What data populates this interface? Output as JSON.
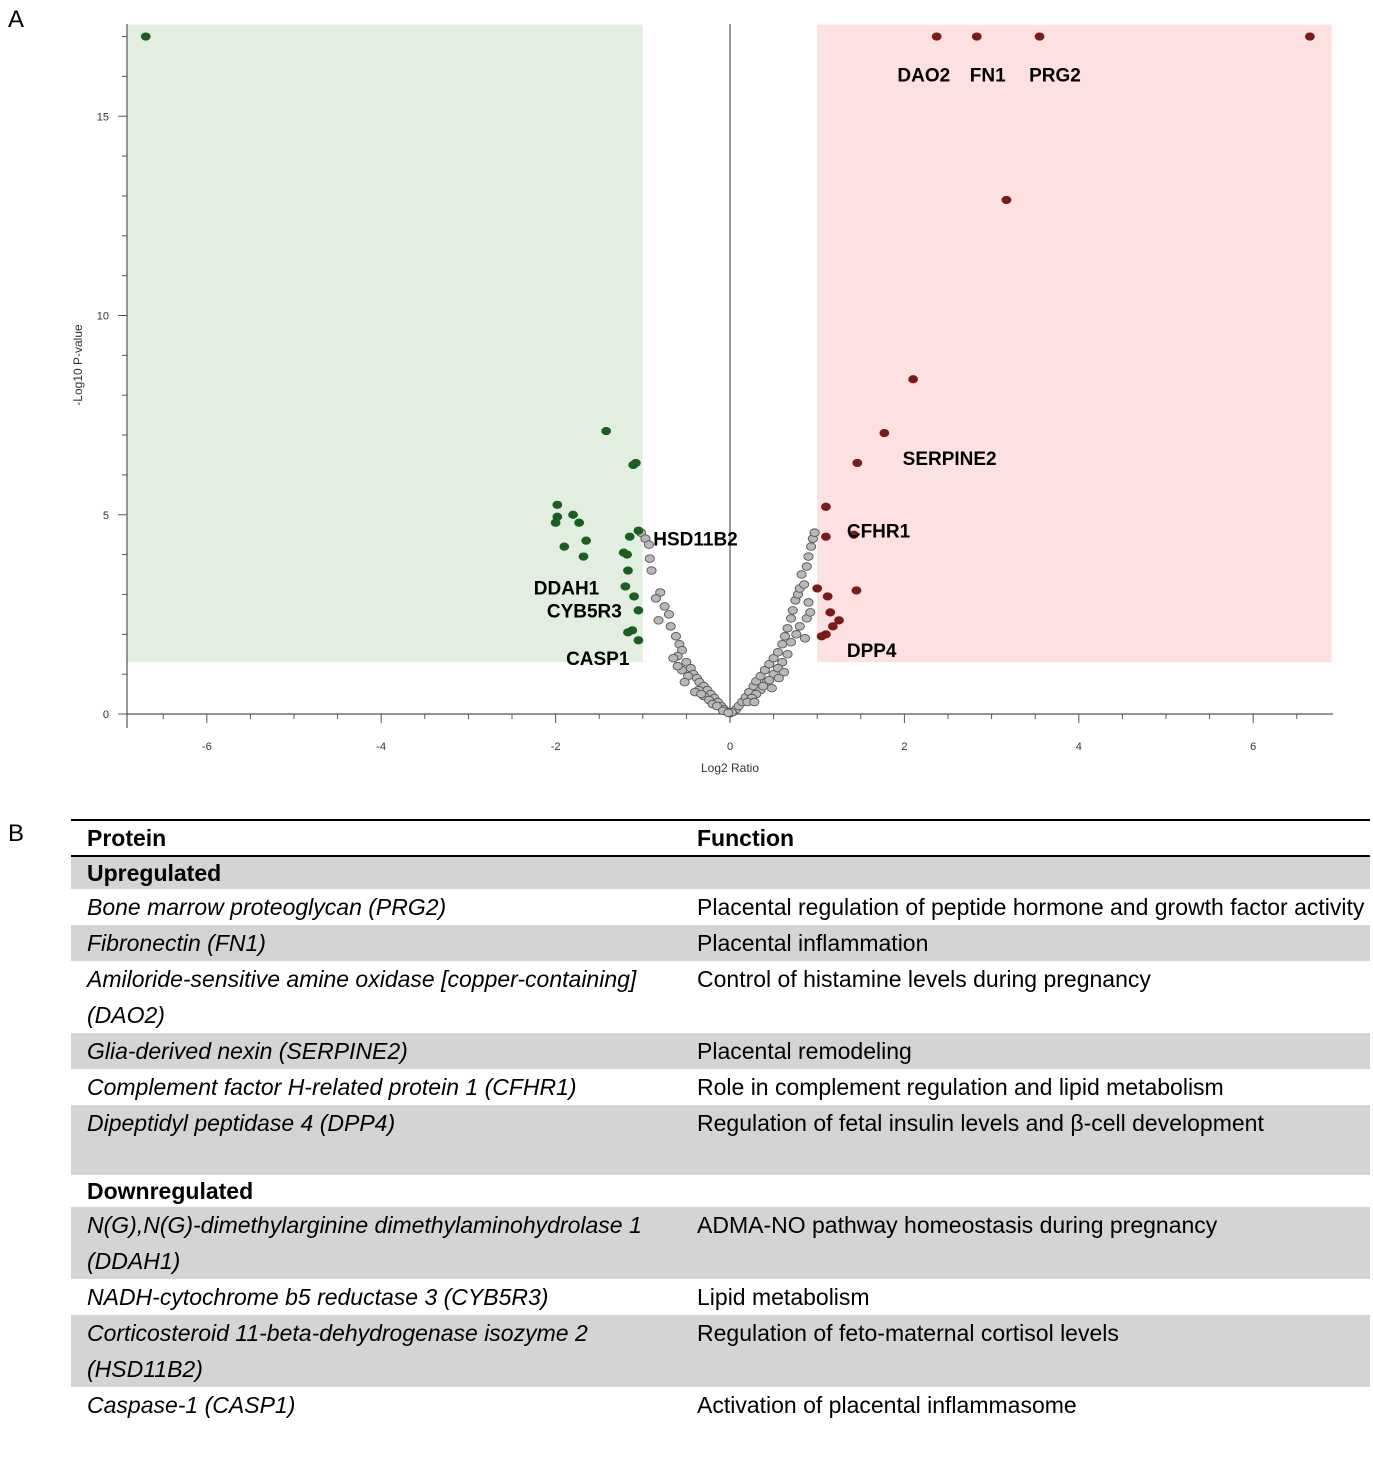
{
  "panels": {
    "a": "A",
    "b": "B"
  },
  "chart_data": {
    "type": "scatter",
    "xlabel": "Log2 Ratio",
    "ylabel": "-Log10 P-value",
    "xlim": [
      -7.0,
      6.9
    ],
    "ylim": [
      0,
      17.3
    ],
    "xticks": [
      -6,
      -4,
      -2,
      0,
      2,
      4,
      6
    ],
    "yticks": [
      0,
      5,
      10,
      15
    ],
    "grid": false,
    "regions": [
      {
        "name": "downregulated",
        "color": "#e2efe0",
        "x": [
          -7.0,
          -1.0
        ],
        "y": [
          1.3,
          17.3
        ]
      },
      {
        "name": "upregulated",
        "color": "#fde0e0",
        "x": [
          1.0,
          6.9
        ],
        "y": [
          1.3,
          17.3
        ]
      }
    ],
    "series": [
      {
        "color": "#1b5e20",
        "points": [
          [
            -6.7,
            17.0
          ],
          [
            -1.42,
            7.1
          ],
          [
            -1.08,
            6.3
          ],
          [
            -1.11,
            6.25
          ],
          [
            -1.98,
            5.25
          ],
          [
            -1.98,
            4.95
          ],
          [
            -2.0,
            4.8
          ],
          [
            -1.8,
            5.0
          ],
          [
            -1.73,
            4.8
          ],
          [
            -1.65,
            4.35
          ],
          [
            -1.9,
            4.2
          ],
          [
            -1.68,
            3.95
          ],
          [
            -1.05,
            4.6
          ],
          [
            -1.15,
            4.45
          ],
          [
            -1.22,
            4.05
          ],
          [
            -1.18,
            4.0
          ],
          [
            -1.17,
            3.6
          ],
          [
            -1.2,
            3.2
          ],
          [
            -1.1,
            2.95
          ],
          [
            -1.05,
            2.6
          ],
          [
            -1.12,
            2.1
          ],
          [
            -1.17,
            2.05
          ],
          [
            -1.05,
            1.85
          ]
        ]
      },
      {
        "color": "#7b1a1a",
        "points": [
          [
            2.37,
            17.0
          ],
          [
            2.83,
            17.0
          ],
          [
            3.55,
            17.0
          ],
          [
            6.65,
            17.0
          ],
          [
            3.17,
            12.9
          ],
          [
            2.1,
            8.4
          ],
          [
            1.77,
            7.05
          ],
          [
            1.46,
            6.3
          ],
          [
            1.1,
            5.2
          ],
          [
            1.42,
            4.5
          ],
          [
            1.1,
            4.45
          ],
          [
            1.45,
            3.1
          ],
          [
            1.0,
            3.15
          ],
          [
            1.12,
            2.95
          ],
          [
            1.15,
            2.55
          ],
          [
            1.25,
            2.35
          ],
          [
            1.18,
            2.2
          ],
          [
            1.1,
            2.0
          ],
          [
            1.05,
            1.95
          ]
        ]
      },
      {
        "color": "#8a8a8a",
        "points": [
          [
            -1.02,
            4.55
          ],
          [
            -0.97,
            4.4
          ],
          [
            -0.93,
            4.25
          ],
          [
            -0.92,
            3.9
          ],
          [
            -0.9,
            3.6
          ],
          [
            -0.8,
            3.05
          ],
          [
            -0.85,
            2.9
          ],
          [
            -0.75,
            2.7
          ],
          [
            -0.7,
            2.5
          ],
          [
            -0.82,
            2.35
          ],
          [
            -0.68,
            2.2
          ],
          [
            -0.62,
            1.95
          ],
          [
            -0.58,
            1.75
          ],
          [
            -0.55,
            1.6
          ],
          [
            -0.6,
            1.45
          ],
          [
            -0.5,
            1.3
          ],
          [
            -0.45,
            1.15
          ],
          [
            -0.42,
            1.0
          ],
          [
            -0.38,
            0.9
          ],
          [
            -0.35,
            0.8
          ],
          [
            -0.3,
            0.7
          ],
          [
            -0.26,
            0.6
          ],
          [
            -0.22,
            0.5
          ],
          [
            -0.18,
            0.4
          ],
          [
            -0.14,
            0.3
          ],
          [
            -0.1,
            0.2
          ],
          [
            -0.07,
            0.12
          ],
          [
            -0.04,
            0.06
          ],
          [
            -0.65,
            1.4
          ],
          [
            -0.55,
            1.1
          ],
          [
            -0.48,
            0.95
          ],
          [
            -0.36,
            0.6
          ],
          [
            -0.3,
            0.45
          ],
          [
            -0.24,
            0.35
          ],
          [
            -0.6,
            1.2
          ],
          [
            -0.52,
            0.8
          ],
          [
            -0.4,
            0.55
          ],
          [
            -0.33,
            0.5
          ],
          [
            -0.2,
            0.25
          ],
          [
            0.04,
            0.06
          ],
          [
            0.07,
            0.12
          ],
          [
            0.1,
            0.2
          ],
          [
            0.14,
            0.3
          ],
          [
            0.18,
            0.42
          ],
          [
            0.22,
            0.55
          ],
          [
            0.27,
            0.7
          ],
          [
            0.3,
            0.82
          ],
          [
            0.35,
            0.95
          ],
          [
            0.4,
            1.1
          ],
          [
            0.45,
            1.25
          ],
          [
            0.5,
            1.4
          ],
          [
            0.55,
            1.55
          ],
          [
            0.6,
            1.75
          ],
          [
            0.63,
            1.95
          ],
          [
            0.66,
            2.15
          ],
          [
            0.7,
            2.4
          ],
          [
            0.72,
            2.6
          ],
          [
            0.75,
            2.85
          ],
          [
            0.78,
            3.0
          ],
          [
            0.8,
            3.15
          ],
          [
            0.85,
            3.25
          ],
          [
            0.82,
            3.5
          ],
          [
            0.88,
            3.7
          ],
          [
            0.9,
            3.95
          ],
          [
            0.93,
            4.2
          ],
          [
            0.95,
            4.4
          ],
          [
            0.97,
            4.55
          ],
          [
            0.88,
            2.4
          ],
          [
            0.86,
            1.9
          ],
          [
            0.76,
            2.0
          ],
          [
            0.7,
            1.8
          ],
          [
            0.6,
            1.3
          ],
          [
            0.5,
            1.0
          ],
          [
            0.42,
            0.8
          ],
          [
            0.35,
            0.6
          ],
          [
            0.3,
            0.5
          ],
          [
            0.25,
            0.4
          ],
          [
            0.9,
            2.8
          ],
          [
            0.92,
            2.55
          ],
          [
            0.8,
            2.2
          ],
          [
            0.66,
            1.5
          ],
          [
            0.55,
            1.15
          ],
          [
            0.45,
            0.85
          ],
          [
            0.38,
            0.7
          ],
          [
            0.2,
            0.3
          ],
          [
            0.62,
            1.05
          ],
          [
            0.56,
            0.9
          ],
          [
            0.48,
            0.65
          ],
          [
            0.28,
            0.3
          ],
          [
            -0.15,
            0.2
          ],
          [
            -0.08,
            0.08
          ],
          [
            0.0,
            0.02
          ],
          [
            0.02,
            0.04
          ],
          [
            -0.02,
            0.03
          ]
        ]
      }
    ],
    "annotations": [
      {
        "text": "DAO2",
        "x": 1.92,
        "y": 16.05
      },
      {
        "text": "FN1",
        "x": 2.75,
        "y": 16.05
      },
      {
        "text": "PRG2",
        "x": 3.43,
        "y": 16.05
      },
      {
        "text": "SERPINE2",
        "x": 1.98,
        "y": 6.42
      },
      {
        "text": "CFHR1",
        "x": 1.34,
        "y": 4.6
      },
      {
        "text": "HSD11B2",
        "x": -0.88,
        "y": 4.4
      },
      {
        "text": "DDAH1",
        "x": -2.25,
        "y": 3.18
      },
      {
        "text": "CYB5R3",
        "x": -2.1,
        "y": 2.6
      },
      {
        "text": "CASP1",
        "x": -1.88,
        "y": 1.41
      },
      {
        "text": "DPP4",
        "x": 1.34,
        "y": 1.6
      }
    ]
  },
  "table": {
    "headers": {
      "protein": "Protein",
      "function": "Function"
    },
    "groups": [
      {
        "title": "Upregulated",
        "rows": [
          {
            "protein": "Bone marrow proteoglycan (PRG2)",
            "function": "Placental regulation of peptide hormone and growth factor activity"
          },
          {
            "protein": "Fibronectin (FN1)",
            "function": "Placental inflammation"
          },
          {
            "protein": "Amiloride-sensitive amine oxidase [copper-containing] (DAO2)",
            "function": "Control of histamine levels during pregnancy"
          },
          {
            "protein": "Glia-derived nexin (SERPINE2)",
            "function": "Placental remodeling"
          },
          {
            "protein": "Complement factor H-related protein 1 (CFHR1)",
            "function": "Role in complement regulation and lipid metabolism"
          },
          {
            "protein": "Dipeptidyl peptidase 4 (DPP4)",
            "function": "Regulation of fetal insulin levels and β-cell development"
          }
        ]
      },
      {
        "title": "Downregulated",
        "rows": [
          {
            "protein": "N(G),N(G)-dimethylarginine dimethylaminohydrolase 1 (DDAH1)",
            "function": "ADMA-NO pathway homeostasis during pregnancy"
          },
          {
            "protein": "NADH-cytochrome b5 reductase 3 (CYB5R3)",
            "function": "Lipid metabolism"
          },
          {
            "protein": "Corticosteroid 11-beta-dehydrogenase isozyme 2 (HSD11B2)",
            "function": "Regulation of feto-maternal cortisol levels"
          },
          {
            "protein": "Caspase-1 (CASP1)",
            "function": "Activation of placental inflammasome"
          }
        ]
      }
    ]
  }
}
